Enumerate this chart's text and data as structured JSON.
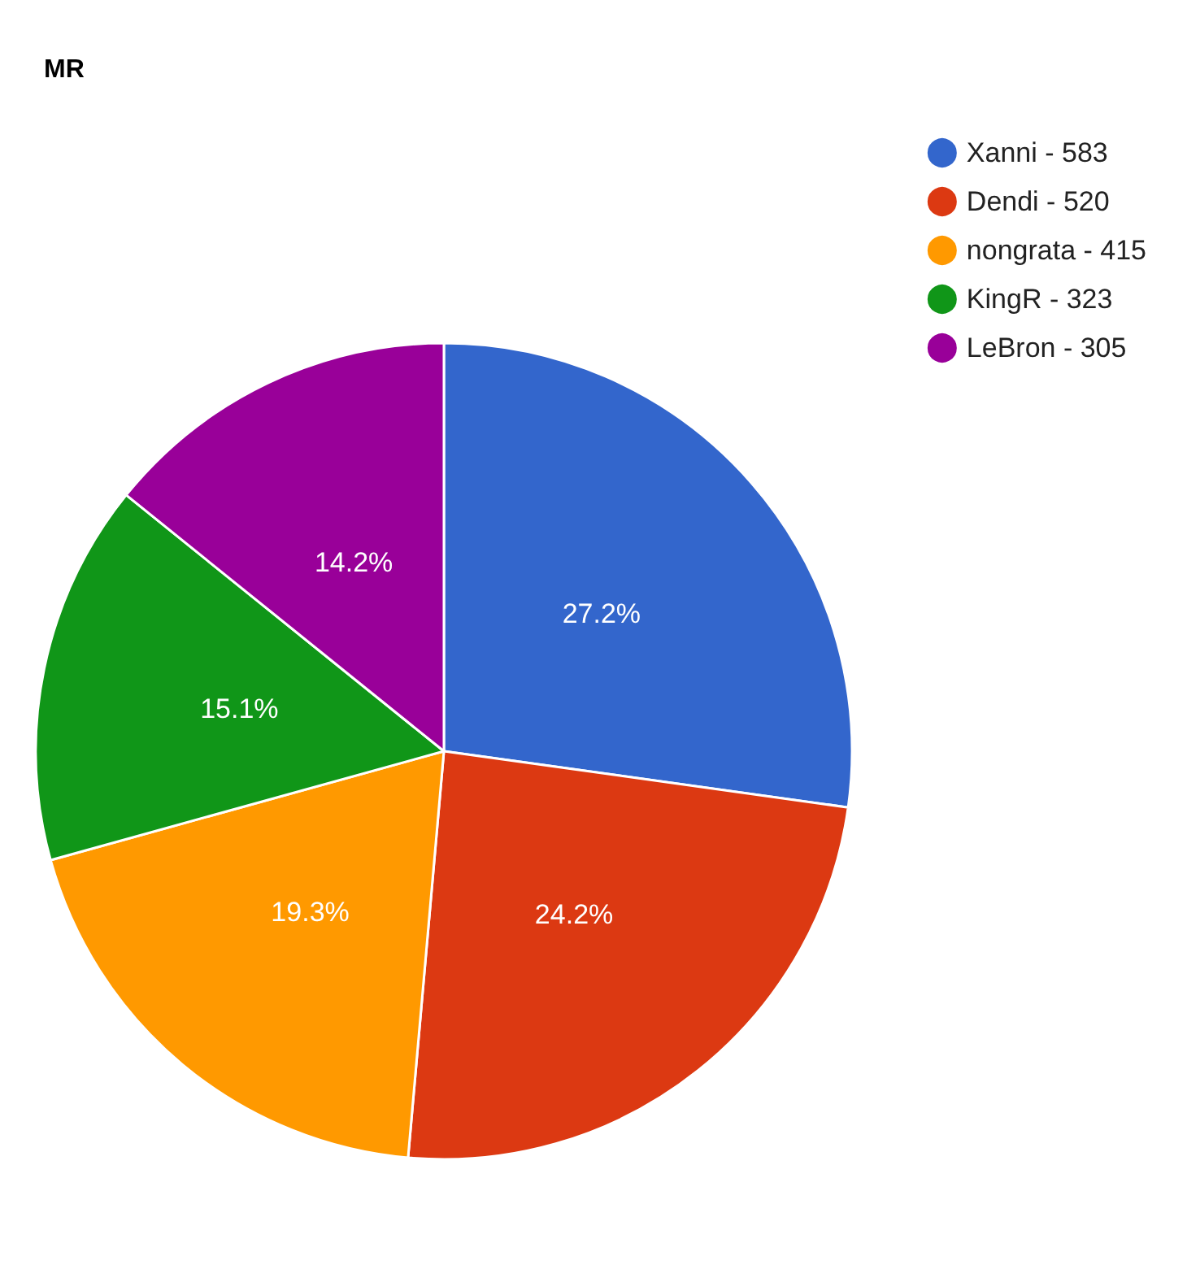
{
  "chart_data": {
    "type": "pie",
    "title": "MR",
    "categories": [
      "Xanni - 583",
      "Dendi - 520",
      "nongrata - 415",
      "KingR - 323",
      "LeBron - 305"
    ],
    "values": [
      27.2,
      24.2,
      19.3,
      15.1,
      14.2
    ],
    "colors": [
      "#3366cc",
      "#dc3912",
      "#ff9900",
      "#109618",
      "#990099"
    ],
    "value_labels": [
      "27.2%",
      "24.2%",
      "19.3%",
      "15.1%",
      "14.2%"
    ],
    "legend": "top right"
  }
}
